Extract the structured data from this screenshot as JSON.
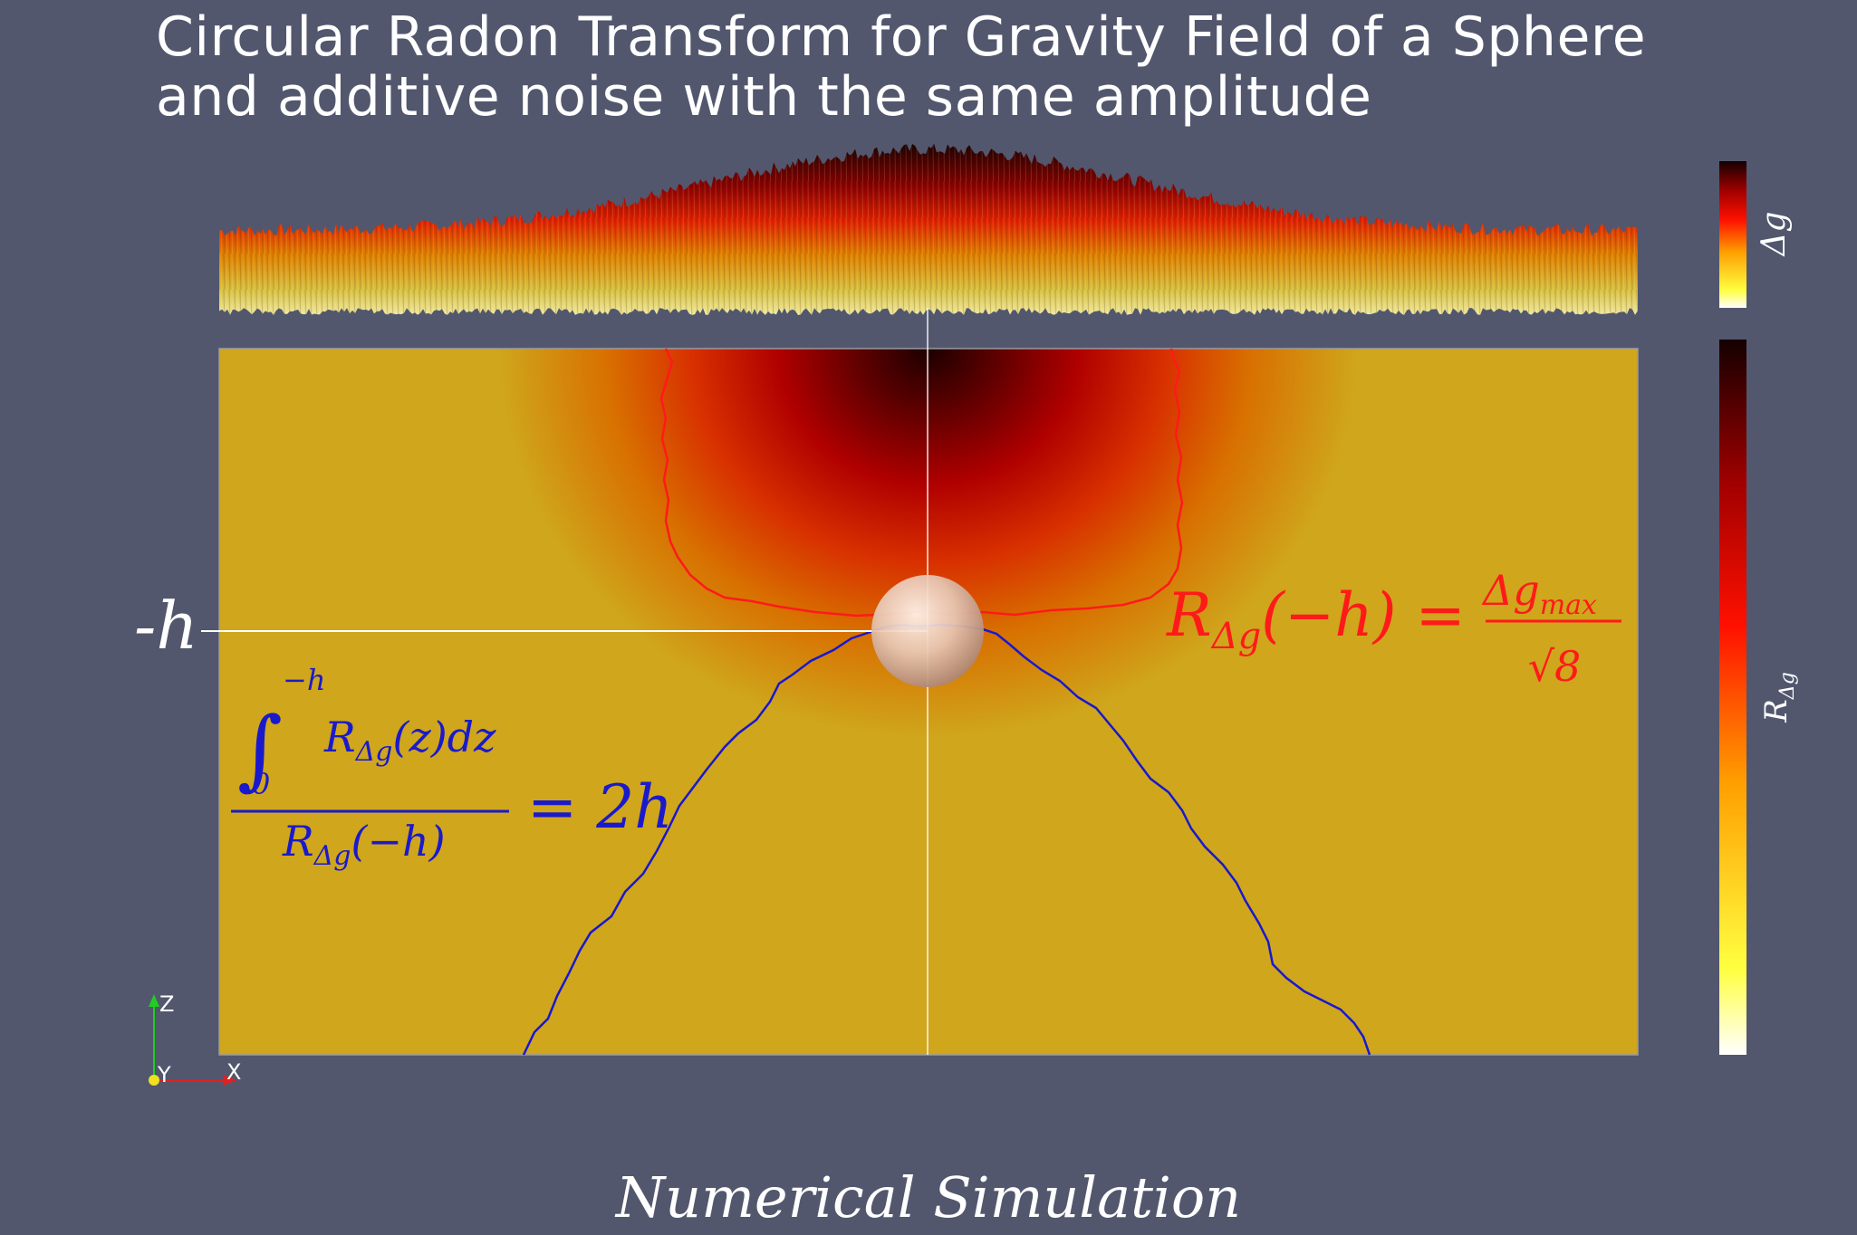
{
  "title": {
    "line1": "Circular Radon Transform for Gravity Field of a Sphere",
    "line2": "and additive noise with the same amplitude"
  },
  "caption": "Numerical Simulation",
  "depth_label": "-h",
  "formula_red": {
    "lhs_base": "R",
    "lhs_sub": "Δg",
    "lhs_arg": "(−h) =",
    "num": "Δg",
    "num_sub": "max",
    "den": "√8",
    "color": "#ff1a1a"
  },
  "formula_blue": {
    "int_upper": "−h",
    "int_lower": "0",
    "integrand": "R",
    "integrand_sub": "Δg",
    "integrand_arg": "(z)dz",
    "den_base": "R",
    "den_sub": "Δg",
    "den_arg": "(−h)",
    "rhs": "= 2h",
    "color": "#1a1acc"
  },
  "colorbars": {
    "top_label": "Δg",
    "bottom_label": "R",
    "bottom_label_sub": "Δg",
    "colors": [
      "#ffffff",
      "#ffff33",
      "#ffa500",
      "#ff1a00",
      "#a00000",
      "#1a0000"
    ]
  },
  "axes": {
    "z": "Z",
    "y": "Y",
    "x": "X"
  }
}
